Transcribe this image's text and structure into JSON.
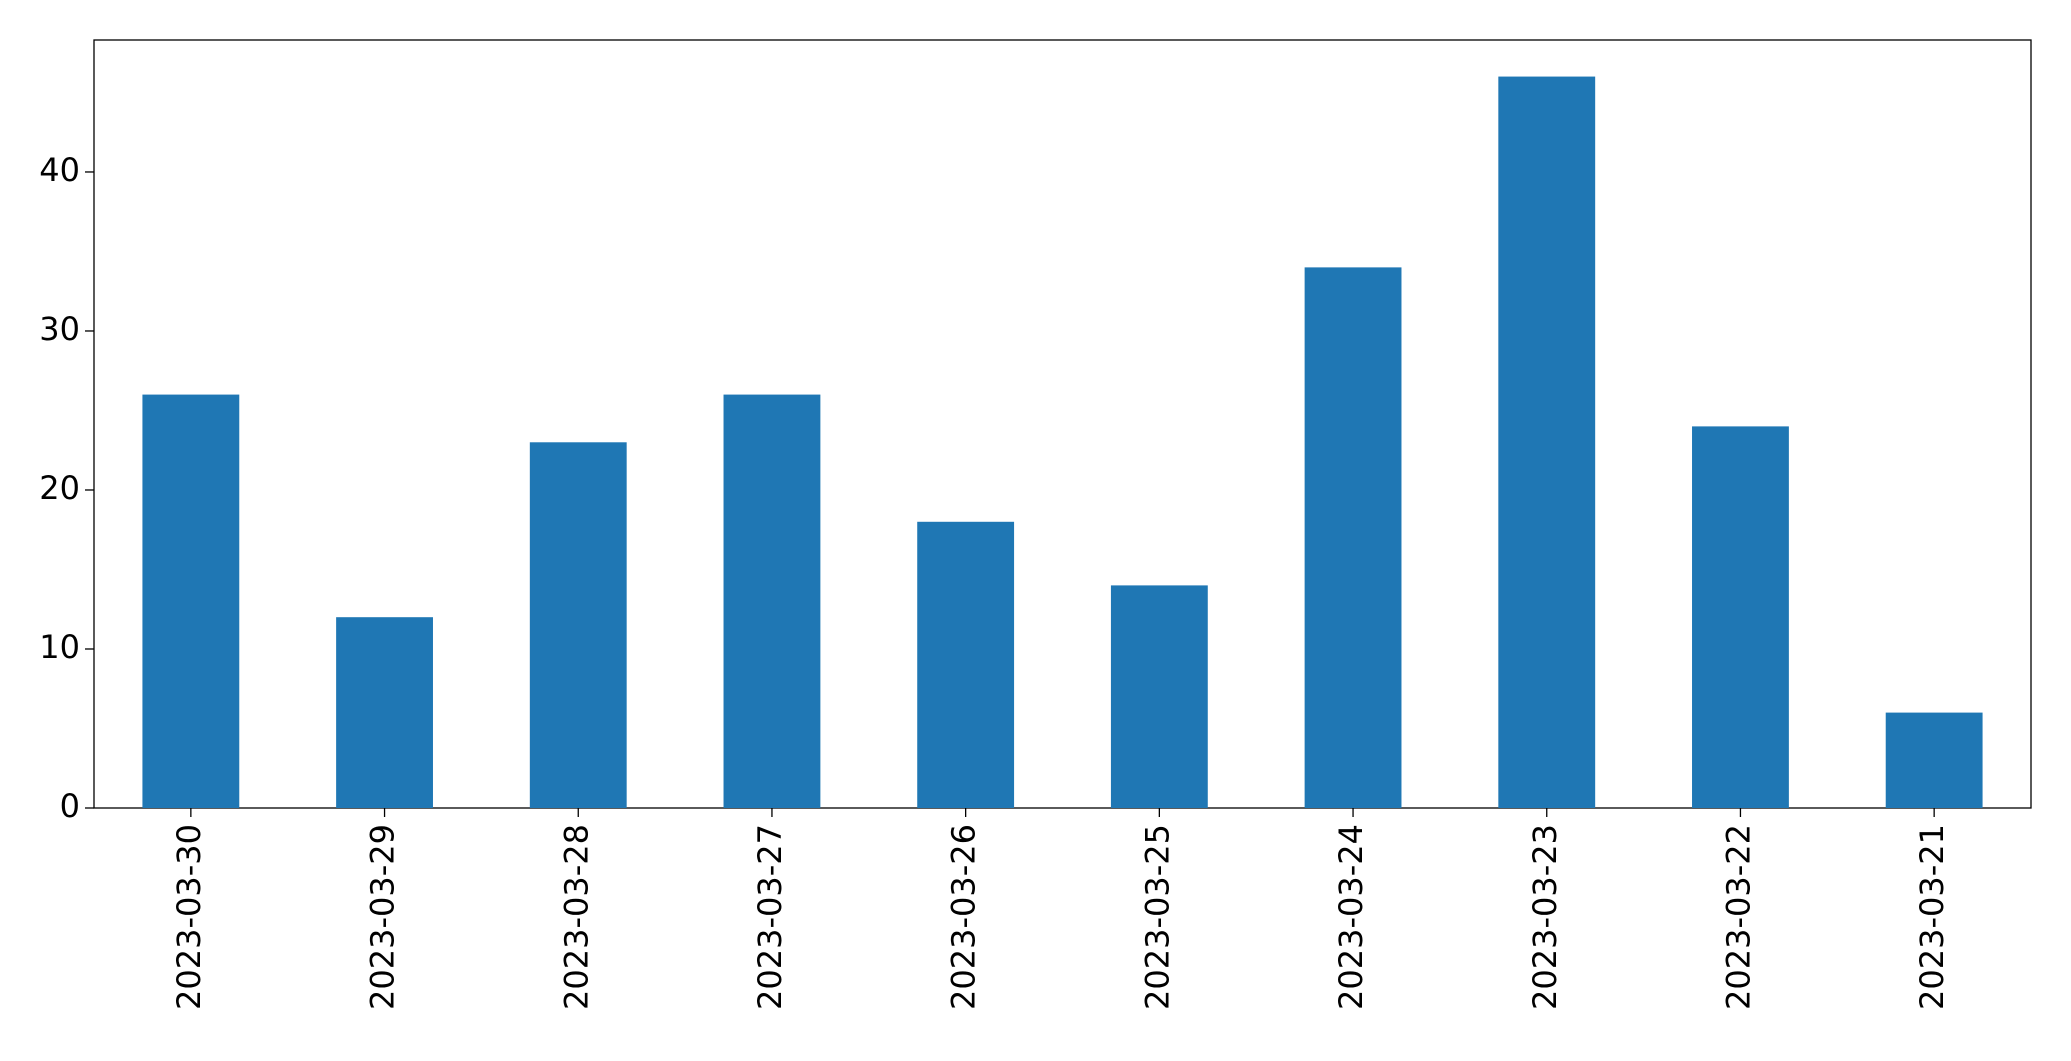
{
  "chart_data": {
    "type": "bar",
    "categories": [
      "2023-03-30",
      "2023-03-29",
      "2023-03-28",
      "2023-03-27",
      "2023-03-26",
      "2023-03-25",
      "2023-03-24",
      "2023-03-23",
      "2023-03-22",
      "2023-03-21"
    ],
    "values": [
      26,
      12,
      23,
      26,
      18,
      14,
      34,
      46,
      24,
      6
    ],
    "color": "#1f77b4",
    "ylim": [
      0,
      48.3
    ],
    "yticks": [
      0,
      10,
      20,
      30,
      40
    ],
    "grid": false
  }
}
